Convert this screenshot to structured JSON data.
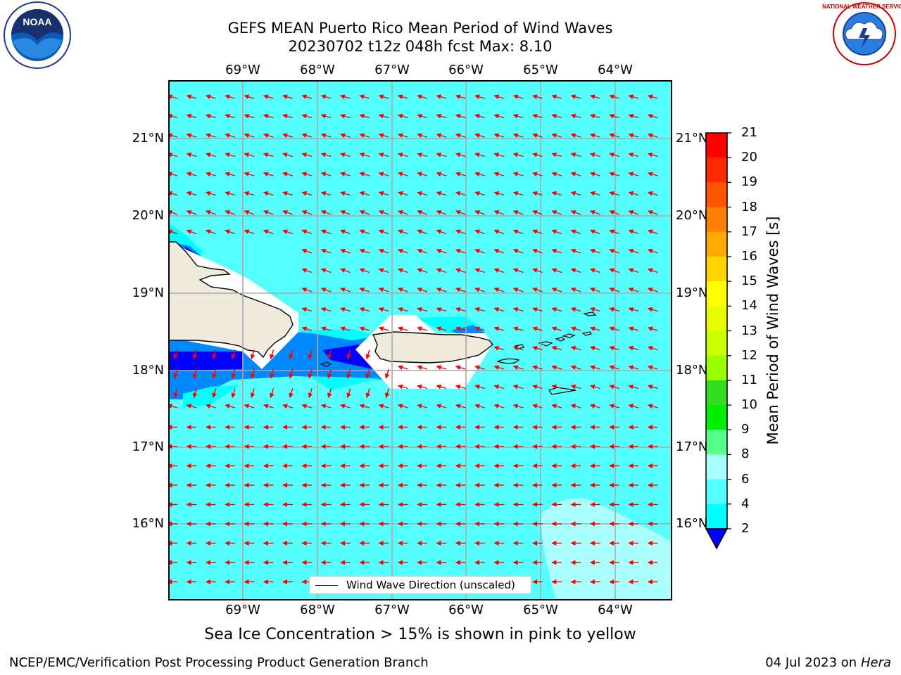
{
  "title_line1": "GEFS MEAN Puerto Rico Mean Period of Wind Waves",
  "title_line2": "20230702 t12z 048h fcst   Max: 8.10",
  "lon_labels": [
    "69°W",
    "68°W",
    "67°W",
    "66°W",
    "65°W",
    "64°W"
  ],
  "lat_labels": [
    "21°N",
    "20°N",
    "19°N",
    "18°N",
    "17°N",
    "16°N"
  ],
  "colorbar": {
    "label": "Mean Period of Wind Waves [s]",
    "ticks": [
      "21",
      "20",
      "19",
      "18",
      "17",
      "16",
      "15",
      "14",
      "13",
      "12",
      "11",
      "10",
      "9",
      "8",
      "6",
      "4",
      "2"
    ],
    "colors": [
      "#ff0000",
      "#ff2a00",
      "#ff5500",
      "#ff8000",
      "#ffaa00",
      "#ffd500",
      "#ffff00",
      "#e6ff00",
      "#ccff00",
      "#99ff00",
      "#33dd22",
      "#00ee00",
      "#55ff88",
      "#aaffff",
      "#55ffff",
      "#00ffff",
      "#0088ff",
      "#0000ff"
    ],
    "extend_color": "#0000ff"
  },
  "legend_label": "Wind Wave Direction (unscaled)",
  "note": "Sea Ice Concentration > 15% is shown in pink to yellow",
  "footer_left": "NCEP/EMC/Verification Post Processing Product Generation Branch",
  "footer_date": "04 Jul 2023 on",
  "footer_host": "Hera",
  "logos": {
    "left": "NOAA",
    "right": "NATIONAL WEATHER SERVICE"
  }
}
